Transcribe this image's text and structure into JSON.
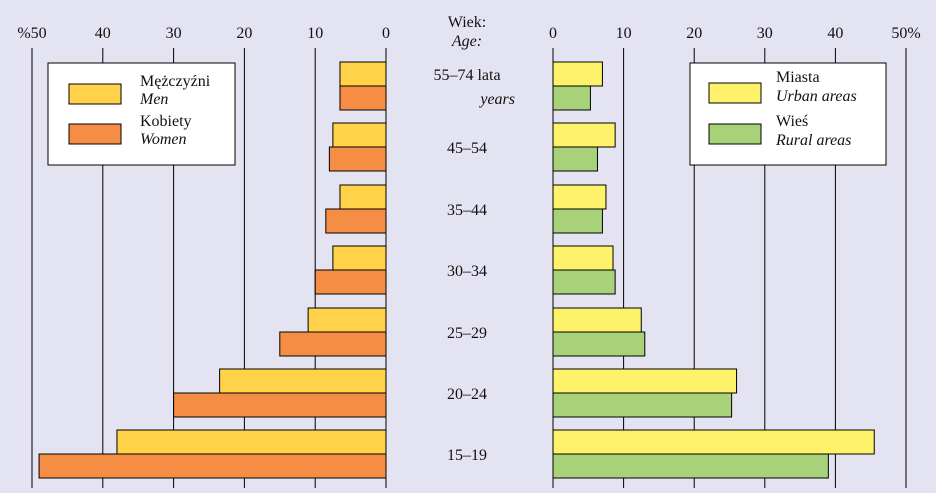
{
  "center_header": {
    "pl": "Wiek:",
    "en": "Age:"
  },
  "colors": {
    "background": "#e4e3f1",
    "men": "#ffd24a",
    "women": "#f68d45",
    "urban": "#fef26a",
    "rural": "#a8d27a",
    "legend_bg": "#ffffff",
    "grid": "#000000"
  },
  "chart_data": [
    {
      "type": "bar",
      "orientation": "horizontal",
      "direction": "right-to-left",
      "categories": [
        "55–74",
        "45–54",
        "35–44",
        "30–34",
        "25–29",
        "20–24",
        "15–19"
      ],
      "category_labels": [
        {
          "pl": "55–74 lata",
          "en": "years"
        },
        {
          "pl": "45–54",
          "en": ""
        },
        {
          "pl": "35–44",
          "en": ""
        },
        {
          "pl": "30–34",
          "en": ""
        },
        {
          "pl": "25–29",
          "en": ""
        },
        {
          "pl": "20–24",
          "en": ""
        },
        {
          "pl": "15–19",
          "en": ""
        }
      ],
      "series": [
        {
          "name": "Mężczyźni",
          "name_en": "Men",
          "color": "#ffd24a",
          "values": [
            6.5,
            7.5,
            6.5,
            7.5,
            11,
            23.5,
            38
          ]
        },
        {
          "name": "Kobiety",
          "name_en": "Women",
          "color": "#f68d45",
          "values": [
            6.5,
            8,
            8.5,
            10,
            15,
            30,
            49
          ]
        }
      ],
      "xlim": [
        0,
        50
      ],
      "ticks": [
        50,
        40,
        30,
        20,
        10,
        0
      ],
      "tick_labels": [
        "%50",
        "40",
        "30",
        "20",
        "10",
        "0"
      ],
      "grid": true,
      "legend_position": "top-left"
    },
    {
      "type": "bar",
      "orientation": "horizontal",
      "direction": "left-to-right",
      "categories": [
        "55–74",
        "45–54",
        "35–44",
        "30–34",
        "25–29",
        "20–24",
        "15–19"
      ],
      "series": [
        {
          "name": "Miasta",
          "name_en": "Urban areas",
          "color": "#fef26a",
          "values": [
            7,
            8.8,
            7.5,
            8.5,
            12.5,
            26,
            45.5
          ]
        },
        {
          "name": "Wieś",
          "name_en": "Rural areas",
          "color": "#a8d27a",
          "values": [
            5.3,
            6.3,
            7,
            8.8,
            13,
            25.3,
            39
          ]
        }
      ],
      "xlim": [
        0,
        50
      ],
      "ticks": [
        0,
        10,
        20,
        30,
        40,
        50
      ],
      "tick_labels": [
        "0",
        "10",
        "20",
        "30",
        "40",
        "50%"
      ],
      "grid": true,
      "legend_position": "top-right"
    }
  ]
}
